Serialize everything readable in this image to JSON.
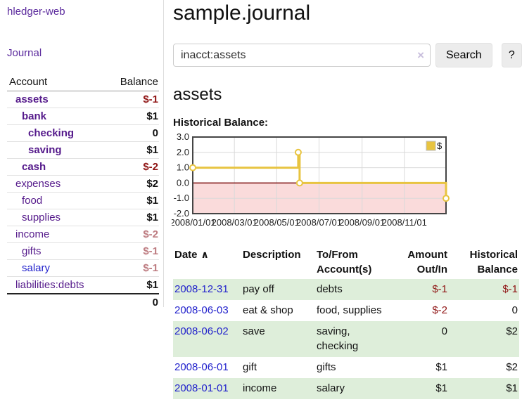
{
  "colors": {
    "link_purple": "#551a8b",
    "link_blue": "#2222cc",
    "negative_red": "#8f1414",
    "negative_muted": "#bd7b80",
    "row_green": "#deeeda",
    "series_gold": "#e8c440",
    "chart_negative_region": "#fadbdb",
    "chart_zero_line": "#7d0c0c",
    "chart_border": "#454545",
    "chart_grid": "#d9d9d9"
  },
  "sidebar": {
    "brand": "hledger-web",
    "journal_link": "Journal",
    "header": {
      "account": "Account",
      "balance": "Balance"
    },
    "accounts": [
      {
        "name": "assets",
        "balance": "$-1",
        "depth": 1,
        "bold": true,
        "neg": "strong"
      },
      {
        "name": "bank",
        "balance": "$1",
        "depth": 2,
        "bold": true,
        "neg": "none"
      },
      {
        "name": "checking",
        "balance": "0",
        "depth": 3,
        "bold": true,
        "neg": "none"
      },
      {
        "name": "saving",
        "balance": "$1",
        "depth": 3,
        "bold": true,
        "neg": "none"
      },
      {
        "name": "cash",
        "balance": "$-2",
        "depth": 2,
        "bold": true,
        "neg": "strong"
      },
      {
        "name": "expenses",
        "balance": "$2",
        "depth": 1,
        "bold": false,
        "neg": "none"
      },
      {
        "name": "food",
        "balance": "$1",
        "depth": 2,
        "bold": false,
        "neg": "none"
      },
      {
        "name": "supplies",
        "balance": "$1",
        "depth": 2,
        "bold": false,
        "neg": "none"
      },
      {
        "name": "income",
        "balance": "$-2",
        "depth": 1,
        "bold": false,
        "neg": "muted"
      },
      {
        "name": "gifts",
        "balance": "$-1",
        "depth": 2,
        "bold": false,
        "neg": "muted"
      },
      {
        "name": "salary",
        "balance": "$-1",
        "depth": 2,
        "bold": false,
        "neg": "muted",
        "link_blue": true
      },
      {
        "name": "liabilities:debts",
        "balance": "$1",
        "depth": 1,
        "bold": false,
        "neg": "none"
      }
    ],
    "total": "0"
  },
  "main": {
    "title": "sample.journal",
    "search": {
      "value": "inacct:assets",
      "clear_icon": "×",
      "search_button": "Search",
      "help_button": "?"
    },
    "account_heading": "assets",
    "chart_label": "Historical Balance:"
  },
  "chart_data": {
    "type": "line",
    "step": true,
    "title": "Historical Balance",
    "x_range": [
      "2008-01-01",
      "2008-12-31"
    ],
    "ylim": [
      -2,
      3
    ],
    "y_ticks": [
      "3.0",
      "2.0",
      "1.0",
      "0.0",
      "-1.0",
      "-2.0"
    ],
    "x_ticks": [
      {
        "label": "2008/01/01",
        "date": "2008-01-01"
      },
      {
        "label": "2008/03/01",
        "date": "2008-03-01"
      },
      {
        "label": "2008/05/01",
        "date": "2008-05-01"
      },
      {
        "label": "2008/07/01",
        "date": "2008-07-01"
      },
      {
        "label": "2008/09/01",
        "date": "2008-09-01"
      },
      {
        "label": "2008/11/01",
        "date": "2008-11-01"
      }
    ],
    "series": [
      {
        "name": "$",
        "color": "#e8c440",
        "dates": [
          "2008-01-01",
          "2008-06-01",
          "2008-06-03",
          "2008-12-31"
        ],
        "values": [
          1,
          2,
          0,
          -1
        ]
      }
    ],
    "legend": {
      "label": "$",
      "position": "top-right"
    },
    "grid": true,
    "negative_region_shaded": true
  },
  "register": {
    "headers": {
      "date": "Date",
      "sort_icon": "∧",
      "description": "Description",
      "tofrom": "To/From Account(s)",
      "amount": "Amount Out/In",
      "balance": "Historical Balance"
    },
    "rows": [
      {
        "date": "2008-12-31",
        "description": "pay off",
        "accounts": "debts",
        "amount": "$-1",
        "balance": "$-1",
        "shaded": true
      },
      {
        "date": "2008-06-03",
        "description": "eat & shop",
        "accounts": "food, supplies",
        "amount": "$-2",
        "balance": "0",
        "shaded": false
      },
      {
        "date": "2008-06-02",
        "description": "save",
        "accounts": "saving, checking",
        "amount": "0",
        "balance": "$2",
        "shaded": true
      },
      {
        "date": "2008-06-01",
        "description": "gift",
        "accounts": "gifts",
        "amount": "$1",
        "balance": "$2",
        "shaded": false
      },
      {
        "date": "2008-01-01",
        "description": "income",
        "accounts": "salary",
        "amount": "$1",
        "balance": "$1",
        "shaded": true
      }
    ]
  }
}
